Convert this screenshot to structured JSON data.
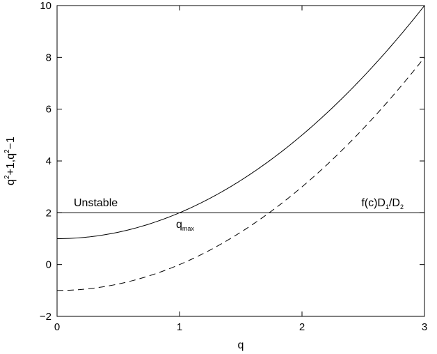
{
  "chart_data": {
    "type": "line",
    "xlabel": "q",
    "ylabel": {
      "base": "q",
      "sup1": "2",
      "mid": "+1,q",
      "sup2": "2",
      "end": "−1"
    },
    "xlim": [
      0,
      3
    ],
    "ylim": [
      -2,
      10
    ],
    "xticks": [
      0,
      1,
      2,
      3
    ],
    "yticks": [
      -2,
      0,
      2,
      4,
      6,
      8,
      10
    ],
    "ytick_labels": [
      "−2",
      "0",
      "2",
      "4",
      "6",
      "8",
      "10"
    ],
    "grid": false,
    "legend": "none",
    "series": [
      {
        "style": "solid",
        "formula": "q^2+1",
        "x": [
          0,
          0.5,
          1,
          1.5,
          2,
          2.5,
          3
        ],
        "y": [
          1,
          1.25,
          2,
          3.25,
          5,
          7.25,
          10
        ]
      },
      {
        "style": "dashed",
        "formula": "q^2-1",
        "x": [
          0,
          0.5,
          1,
          1.5,
          2,
          2.5,
          3
        ],
        "y": [
          -1,
          -0.75,
          0,
          1.25,
          3,
          5.25,
          8
        ]
      },
      {
        "style": "solid",
        "formula": "const",
        "x": [
          0,
          3
        ],
        "y": [
          2,
          2
        ]
      }
    ],
    "annotations": {
      "unstable": "Unstable",
      "qmax": {
        "base": "q",
        "sub": "max"
      },
      "threshold": {
        "p1": "f(c)D",
        "s1": "1",
        "p2": "/D",
        "s2": "2"
      }
    }
  }
}
